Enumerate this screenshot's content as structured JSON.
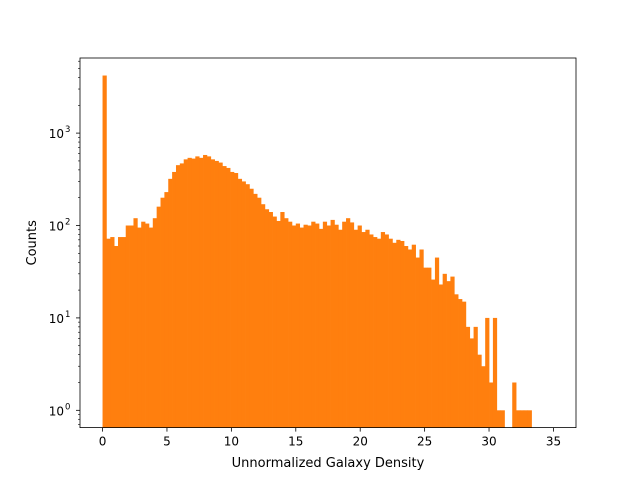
{
  "chart_data": {
    "type": "bar",
    "title": "",
    "xlabel": "Unnormalized Galaxy Density",
    "ylabel": "Counts",
    "y_scale": "log",
    "xlim": [
      -1.75,
      36.75
    ],
    "ylim": [
      0.65,
      6500
    ],
    "grid": false,
    "color": "#ff7f0e",
    "x_ticks": [
      0,
      5,
      10,
      15,
      20,
      25,
      30,
      35
    ],
    "x_tick_labels": [
      "0",
      "5",
      "10",
      "15",
      "20",
      "25",
      "30",
      "35"
    ],
    "y_ticks": [
      1,
      10,
      100,
      1000
    ],
    "y_tick_labels": [
      "10^0",
      "10^1",
      "10^2",
      "10^3"
    ],
    "bin_start": 0,
    "bin_width": 0.3,
    "values": [
      4200,
      72,
      75,
      60,
      75,
      75,
      100,
      100,
      120,
      95,
      110,
      105,
      95,
      120,
      160,
      200,
      230,
      320,
      380,
      450,
      470,
      520,
      540,
      530,
      560,
      540,
      580,
      560,
      520,
      500,
      480,
      440,
      420,
      380,
      370,
      320,
      300,
      280,
      250,
      220,
      200,
      170,
      150,
      140,
      125,
      112,
      140,
      120,
      110,
      100,
      105,
      95,
      102,
      100,
      110,
      105,
      92,
      110,
      100,
      115,
      102,
      90,
      110,
      120,
      108,
      90,
      100,
      85,
      90,
      80,
      75,
      72,
      85,
      80,
      72,
      65,
      70,
      68,
      60,
      55,
      62,
      45,
      55,
      35,
      35,
      26,
      45,
      23,
      30,
      25,
      28,
      18,
      16,
      15,
      8,
      6,
      8,
      4,
      3,
      10,
      2,
      10,
      1,
      1,
      0,
      0,
      2,
      1,
      1,
      1,
      1
    ]
  }
}
